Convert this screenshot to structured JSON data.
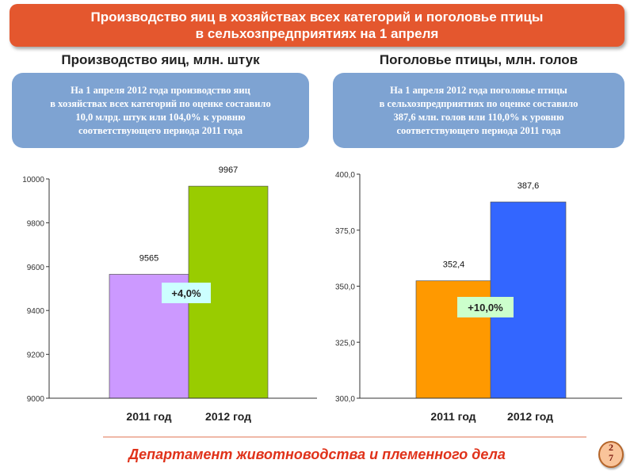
{
  "header": {
    "line1": "Производство яиц в хозяйствах всех категорий и поголовье птицы",
    "line2": "в сельхозпредприятиях  на 1 апреля"
  },
  "left": {
    "subtitle": "Производство яиц, млн. штук",
    "info": [
      "На 1 апреля 2012 года производство яиц",
      "в хозяйствах всех категорий по оценке составило",
      "10,0 млрд. штук или 104,0% к уровню",
      "соответствующего периода 2011 года"
    ]
  },
  "right": {
    "subtitle": "Поголовье птицы, млн. голов",
    "info": [
      "На 1 апреля 2012 года поголовье птицы",
      "в сельхозпредприятиях по оценке составило",
      "387,6 млн. голов или 110,0% к уровню",
      "соответствующего периода 2011 года"
    ]
  },
  "chart_data": [
    {
      "type": "bar",
      "categories": [
        "2011 год",
        "2012 год"
      ],
      "values": [
        9565,
        9967
      ],
      "value_labels": [
        "9565",
        "9967"
      ],
      "ylim": [
        9000,
        10000
      ],
      "yticks": [
        9000,
        9200,
        9400,
        9600,
        9800,
        10000
      ],
      "ytick_labels": [
        "9000",
        "9200",
        "9400",
        "9600",
        "9800",
        "10000"
      ],
      "colors": [
        "#cc99ff",
        "#99cc00"
      ],
      "annotation": "+4,0%",
      "annotation_color": "#ccffff"
    },
    {
      "type": "bar",
      "categories": [
        "2011 год",
        "2012 год"
      ],
      "values": [
        352.4,
        387.6
      ],
      "value_labels": [
        "352,4",
        "387,6"
      ],
      "ylim": [
        300,
        400
      ],
      "yticks": [
        300,
        325,
        350,
        375,
        400
      ],
      "ytick_labels": [
        "300,0",
        "325,0",
        "350,0",
        "375,0",
        "400,0"
      ],
      "colors": [
        "#ff9900",
        "#3366ff"
      ],
      "annotation": "+10,0%",
      "annotation_color": "#ccffcc"
    }
  ],
  "footer": "Департамент животноводства и племенного дела",
  "page": {
    "top": "2",
    "bottom": "7"
  }
}
